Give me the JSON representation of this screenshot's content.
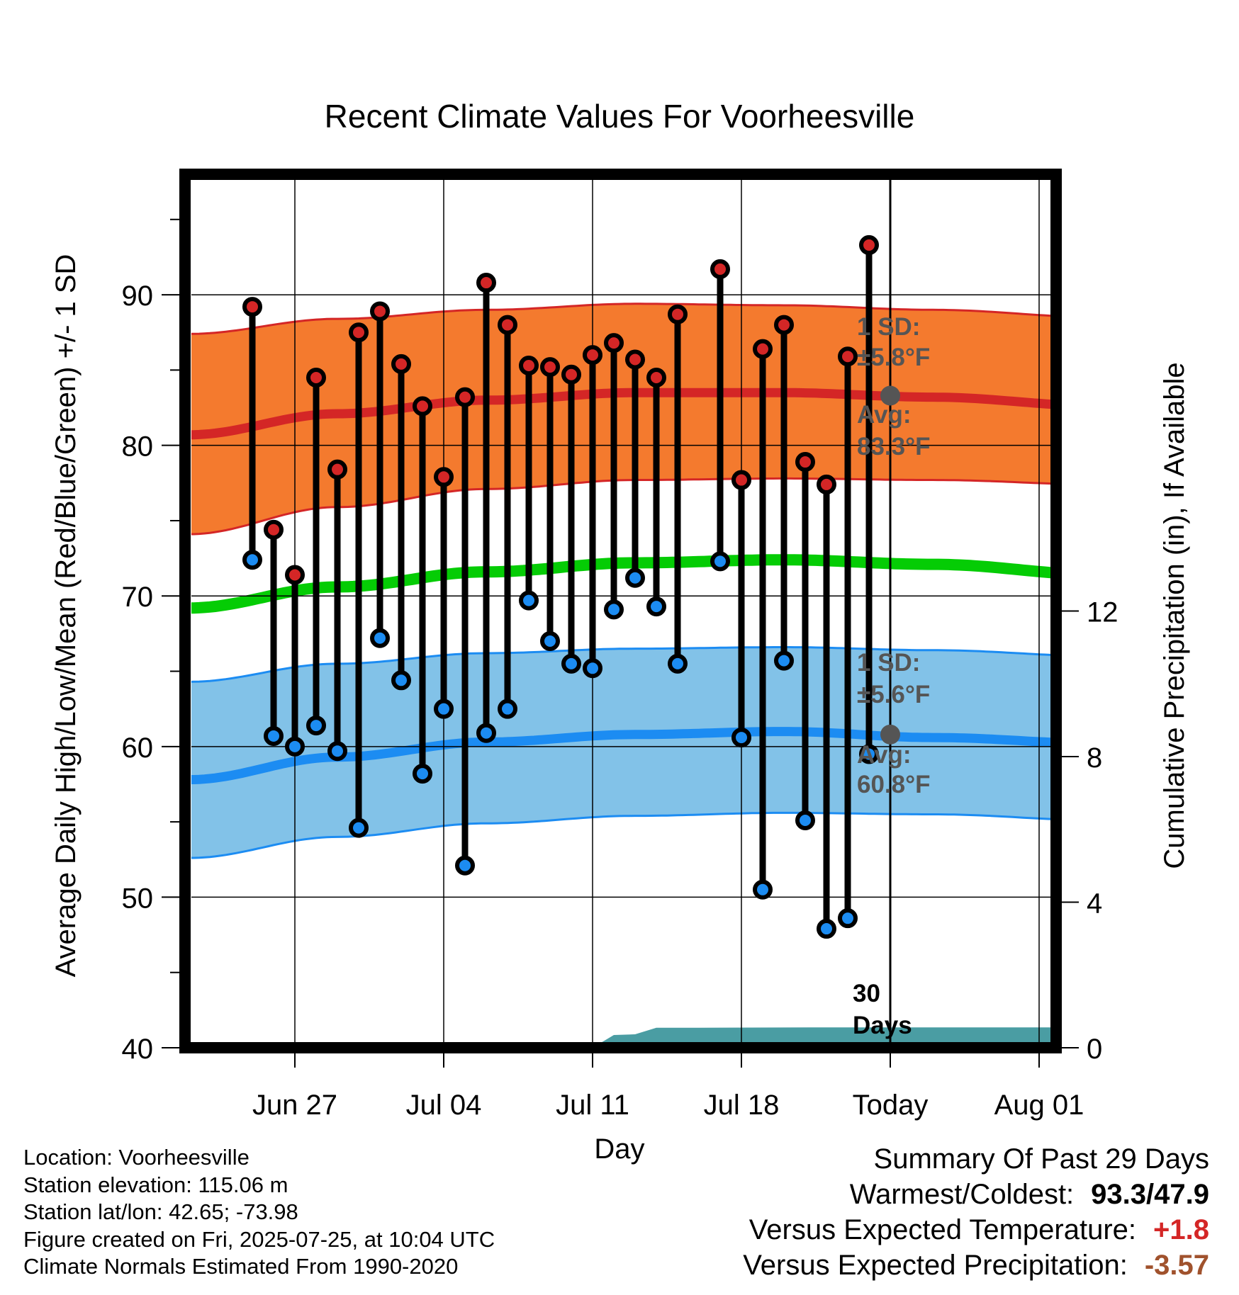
{
  "chart_data": {
    "type": "line",
    "title": "Recent Climate Values For Voorheesville",
    "xlabel": "Day",
    "ylabel": "Average Daily High/Low/Mean (Red/Blue/Green) +/- 1 SD",
    "y2label": "Cumulative Precipitation (in), If Available",
    "ylim": [
      40,
      98
    ],
    "y2lim": [
      0,
      24
    ],
    "yticks": [
      40,
      50,
      60,
      70,
      80,
      90
    ],
    "y2ticks": [
      0,
      4,
      8,
      12
    ],
    "xlim": [
      "2025-06-22",
      "2025-08-04"
    ],
    "x_tick_labels": [
      {
        "date": "2025-06-27",
        "label": "Jun 27"
      },
      {
        "date": "2025-07-04",
        "label": "Jul 04"
      },
      {
        "date": "2025-07-11",
        "label": "Jul 11"
      },
      {
        "date": "2025-07-18",
        "label": "Jul 18"
      },
      {
        "date": "2025-07-25",
        "label": "Today"
      },
      {
        "date": "2025-08-01",
        "label": "Aug 01"
      }
    ],
    "grid": true,
    "observed": {
      "dates": [
        "2025-06-25",
        "2025-06-26",
        "2025-06-27",
        "2025-06-28",
        "2025-06-29",
        "2025-06-30",
        "2025-07-01",
        "2025-07-02",
        "2025-07-03",
        "2025-07-04",
        "2025-07-05",
        "2025-07-06",
        "2025-07-07",
        "2025-07-08",
        "2025-07-09",
        "2025-07-10",
        "2025-07-11",
        "2025-07-12",
        "2025-07-13",
        "2025-07-14",
        "2025-07-15",
        "2025-07-17",
        "2025-07-18",
        "2025-07-19",
        "2025-07-20",
        "2025-07-21",
        "2025-07-22",
        "2025-07-23",
        "2025-07-24"
      ],
      "high": [
        89.2,
        74.4,
        71.4,
        84.5,
        78.4,
        87.5,
        88.9,
        85.4,
        82.6,
        77.9,
        83.2,
        90.8,
        88.0,
        85.3,
        85.2,
        84.7,
        86.0,
        86.8,
        85.7,
        84.5,
        88.7,
        91.7,
        77.7,
        86.4,
        88.0,
        78.9,
        77.4,
        85.9,
        93.3
      ],
      "low": [
        72.4,
        60.7,
        60.0,
        61.4,
        59.7,
        54.6,
        67.2,
        64.4,
        58.2,
        62.5,
        52.1,
        60.9,
        62.5,
        69.7,
        67.0,
        65.5,
        65.2,
        69.1,
        71.2,
        69.3,
        65.5,
        72.3,
        60.6,
        50.5,
        65.7,
        55.1,
        47.9,
        48.6,
        59.5
      ]
    },
    "normals": {
      "dates": [
        "2025-06-22",
        "2025-06-29",
        "2025-07-06",
        "2025-07-13",
        "2025-07-20",
        "2025-07-27",
        "2025-08-04"
      ],
      "high_mean": [
        80.7,
        82.1,
        83.0,
        83.5,
        83.5,
        83.2,
        82.6
      ],
      "high_upper": [
        87.4,
        88.4,
        89.0,
        89.4,
        89.3,
        89.0,
        88.5
      ],
      "high_lower": [
        74.1,
        75.9,
        77.1,
        77.7,
        77.8,
        77.7,
        77.4
      ],
      "mean": [
        69.2,
        70.6,
        71.6,
        72.2,
        72.4,
        72.1,
        71.4
      ],
      "low_mean": [
        57.8,
        59.3,
        60.3,
        60.8,
        61.0,
        60.6,
        60.2
      ],
      "low_upper": [
        64.3,
        65.5,
        66.2,
        66.5,
        66.6,
        66.4,
        66.0
      ],
      "low_lower": [
        52.6,
        54.0,
        54.9,
        55.4,
        55.6,
        55.5,
        55.1
      ]
    },
    "precipitation": {
      "dates": [
        "2025-07-11",
        "2025-07-12",
        "2025-07-13",
        "2025-07-14",
        "2025-07-16",
        "2025-07-22",
        "2025-08-04"
      ],
      "cumulative": [
        0.0,
        0.35,
        0.37,
        0.55,
        0.55,
        0.56,
        0.56
      ]
    },
    "annotations": {
      "high_sd_label": "1 SD:",
      "high_sd_value": "±5.8°F",
      "high_avg_label": "Avg:",
      "high_avg_value": "83.3°F",
      "low_sd_label": "1 SD:",
      "low_sd_value": "±5.6°F",
      "low_avg_label": "Avg:",
      "low_avg_value": "60.8°F",
      "window_count": "30",
      "window_unit": "Days",
      "today_high_avg": 83.3,
      "today_low_avg": 60.8
    },
    "colors": {
      "high_band": "#f47a2e",
      "high_line": "#d42626",
      "low_band": "#82c2e8",
      "low_line": "#1c8cf2",
      "mean_line": "#05cc05",
      "precip_fill": "#4a9da3",
      "high_dot": "#d42626",
      "low_dot": "#1c8cf2",
      "today_dot": "#555555"
    }
  },
  "footer": {
    "location": "Location: Voorheesville",
    "elevation": "Station elevation: 115.06 m",
    "latlon": "Station lat/lon: 42.65; -73.98",
    "created": "Figure created on Fri, 2025-07-25, at 10:04 UTC",
    "normals": "Climate Normals Estimated From 1990-2020"
  },
  "summary": {
    "heading": "Summary Of Past 29 Days",
    "extremes_label": "Warmest/Coldest:",
    "extremes_value": "93.3/47.9",
    "temp_label": "Versus Expected Temperature:",
    "temp_value": "+1.8",
    "temp_color": "#d42626",
    "precip_label": "Versus Expected Precipitation:",
    "precip_value": "-3.57",
    "precip_color": "#a0522d"
  }
}
